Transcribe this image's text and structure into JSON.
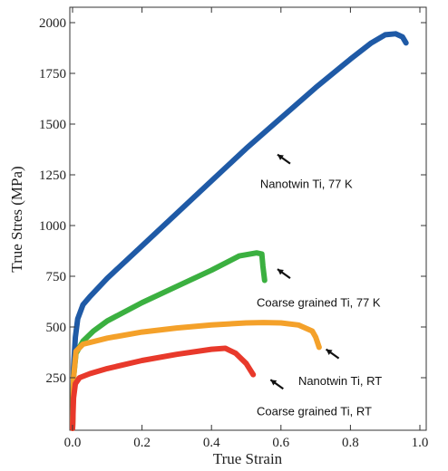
{
  "chart_data": {
    "type": "line",
    "xlabel": "True Strain",
    "ylabel": "True Stres  (MPa)",
    "xlim": [
      0,
      1.0
    ],
    "ylim": [
      0,
      2050
    ],
    "xticks": [
      0.0,
      0.2,
      0.4,
      0.6,
      0.8,
      1.0
    ],
    "xtick_labels": [
      "0.0",
      "0.2",
      "0.4",
      "0.6",
      "0.8",
      "1.0"
    ],
    "yticks": [
      250,
      500,
      750,
      1000,
      1250,
      1500,
      1750,
      2000
    ],
    "ytick_labels": [
      "250",
      "500",
      "750",
      "1000",
      "1250",
      "1500",
      "1750",
      "2000"
    ],
    "grid": false,
    "legend": "none",
    "series": [
      {
        "color": "#1f5aa6",
        "points": [
          [
            0.0,
            0
          ],
          [
            0.003,
            300
          ],
          [
            0.008,
            450
          ],
          [
            0.015,
            540
          ],
          [
            0.03,
            610
          ],
          [
            0.05,
            650
          ],
          [
            0.1,
            740
          ],
          [
            0.2,
            900
          ],
          [
            0.3,
            1060
          ],
          [
            0.4,
            1220
          ],
          [
            0.5,
            1380
          ],
          [
            0.6,
            1530
          ],
          [
            0.7,
            1680
          ],
          [
            0.8,
            1820
          ],
          [
            0.86,
            1900
          ],
          [
            0.9,
            1940
          ],
          [
            0.93,
            1945
          ],
          [
            0.95,
            1930
          ],
          [
            0.96,
            1900
          ]
        ]
      },
      {
        "color": "#3bb040",
        "points": [
          [
            0.0,
            0
          ],
          [
            0.003,
            250
          ],
          [
            0.01,
            370
          ],
          [
            0.03,
            430
          ],
          [
            0.06,
            480
          ],
          [
            0.1,
            530
          ],
          [
            0.2,
            620
          ],
          [
            0.3,
            700
          ],
          [
            0.4,
            780
          ],
          [
            0.48,
            850
          ],
          [
            0.53,
            865
          ],
          [
            0.545,
            860
          ],
          [
            0.548,
            800
          ],
          [
            0.553,
            730
          ]
        ]
      },
      {
        "color": "#f4a12a",
        "points": [
          [
            0.0,
            0
          ],
          [
            0.003,
            250
          ],
          [
            0.01,
            380
          ],
          [
            0.03,
            415
          ],
          [
            0.1,
            445
          ],
          [
            0.2,
            475
          ],
          [
            0.3,
            495
          ],
          [
            0.4,
            510
          ],
          [
            0.5,
            520
          ],
          [
            0.55,
            522
          ],
          [
            0.6,
            520
          ],
          [
            0.65,
            510
          ],
          [
            0.69,
            480
          ],
          [
            0.7,
            450
          ],
          [
            0.71,
            400
          ]
        ]
      },
      {
        "color": "#e8392b",
        "points": [
          [
            0.0,
            0
          ],
          [
            0.003,
            150
          ],
          [
            0.008,
            220
          ],
          [
            0.02,
            250
          ],
          [
            0.05,
            270
          ],
          [
            0.1,
            295
          ],
          [
            0.2,
            335
          ],
          [
            0.3,
            365
          ],
          [
            0.4,
            390
          ],
          [
            0.44,
            395
          ],
          [
            0.47,
            370
          ],
          [
            0.5,
            320
          ],
          [
            0.52,
            265
          ]
        ]
      }
    ],
    "annotations": [
      {
        "text": "Nanotwin Ti, 77 K",
        "arrow_tip": [
          0.59,
          1350
        ],
        "text_pos": [
          0.54,
          1185
        ]
      },
      {
        "text": "Coarse grained Ti, 77 K",
        "arrow_tip": [
          0.59,
          785
        ],
        "text_pos": [
          0.53,
          600
        ]
      },
      {
        "text": "Nanotwin Ti, RT",
        "arrow_tip": [
          0.73,
          390
        ],
        "text_pos": [
          0.65,
          215
        ]
      },
      {
        "text": "Coarse grained Ti, RT",
        "arrow_tip": [
          0.57,
          240
        ],
        "text_pos": [
          0.53,
          65
        ]
      }
    ]
  }
}
